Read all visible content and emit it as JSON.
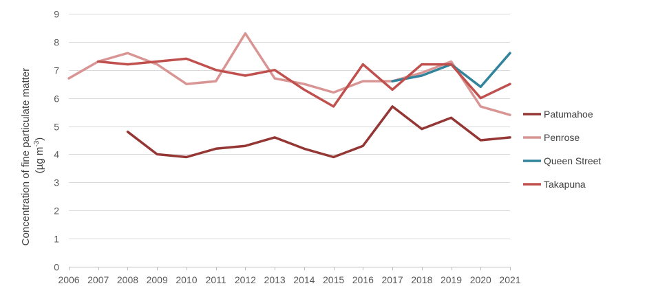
{
  "chart_data": {
    "type": "line",
    "title": "",
    "xlabel": "",
    "ylabel_line1": "Concentration of fine particulate matter",
    "ylabel_line2_prefix": "(µg m",
    "ylabel_line2_sup": "-3",
    "ylabel_line2_suffix": ")",
    "ylim": [
      0,
      9
    ],
    "yticks": [
      0,
      1,
      2,
      3,
      4,
      5,
      6,
      7,
      8,
      9
    ],
    "grid": true,
    "legend_position": "right",
    "x": [
      "2006",
      "2007",
      "2008",
      "2009",
      "2010",
      "2011",
      "2012",
      "2013",
      "2014",
      "2015",
      "2016",
      "2017",
      "2018",
      "2019",
      "2020",
      "2021"
    ],
    "series": [
      {
        "name": "Patumahoe",
        "color": "#943634",
        "values": [
          null,
          null,
          4.8,
          4.0,
          3.9,
          4.2,
          4.3,
          4.6,
          4.2,
          3.9,
          4.3,
          5.7,
          4.9,
          5.3,
          4.5,
          4.6
        ]
      },
      {
        "name": "Penrose",
        "color": "#d99594",
        "values": [
          6.7,
          7.3,
          7.6,
          7.2,
          6.5,
          6.6,
          8.3,
          6.7,
          6.5,
          6.2,
          6.6,
          6.6,
          6.9,
          7.3,
          5.7,
          5.4
        ]
      },
      {
        "name": "Queen Street",
        "color": "#31849b",
        "values": [
          null,
          null,
          null,
          null,
          null,
          null,
          null,
          null,
          null,
          null,
          null,
          6.6,
          6.8,
          7.2,
          6.4,
          7.6
        ]
      },
      {
        "name": "Takapuna",
        "color": "#c0504d",
        "values": [
          null,
          7.3,
          7.2,
          7.3,
          7.4,
          7.0,
          6.8,
          7.0,
          6.3,
          5.7,
          7.2,
          6.3,
          7.2,
          7.2,
          6.0,
          6.5
        ]
      }
    ]
  }
}
